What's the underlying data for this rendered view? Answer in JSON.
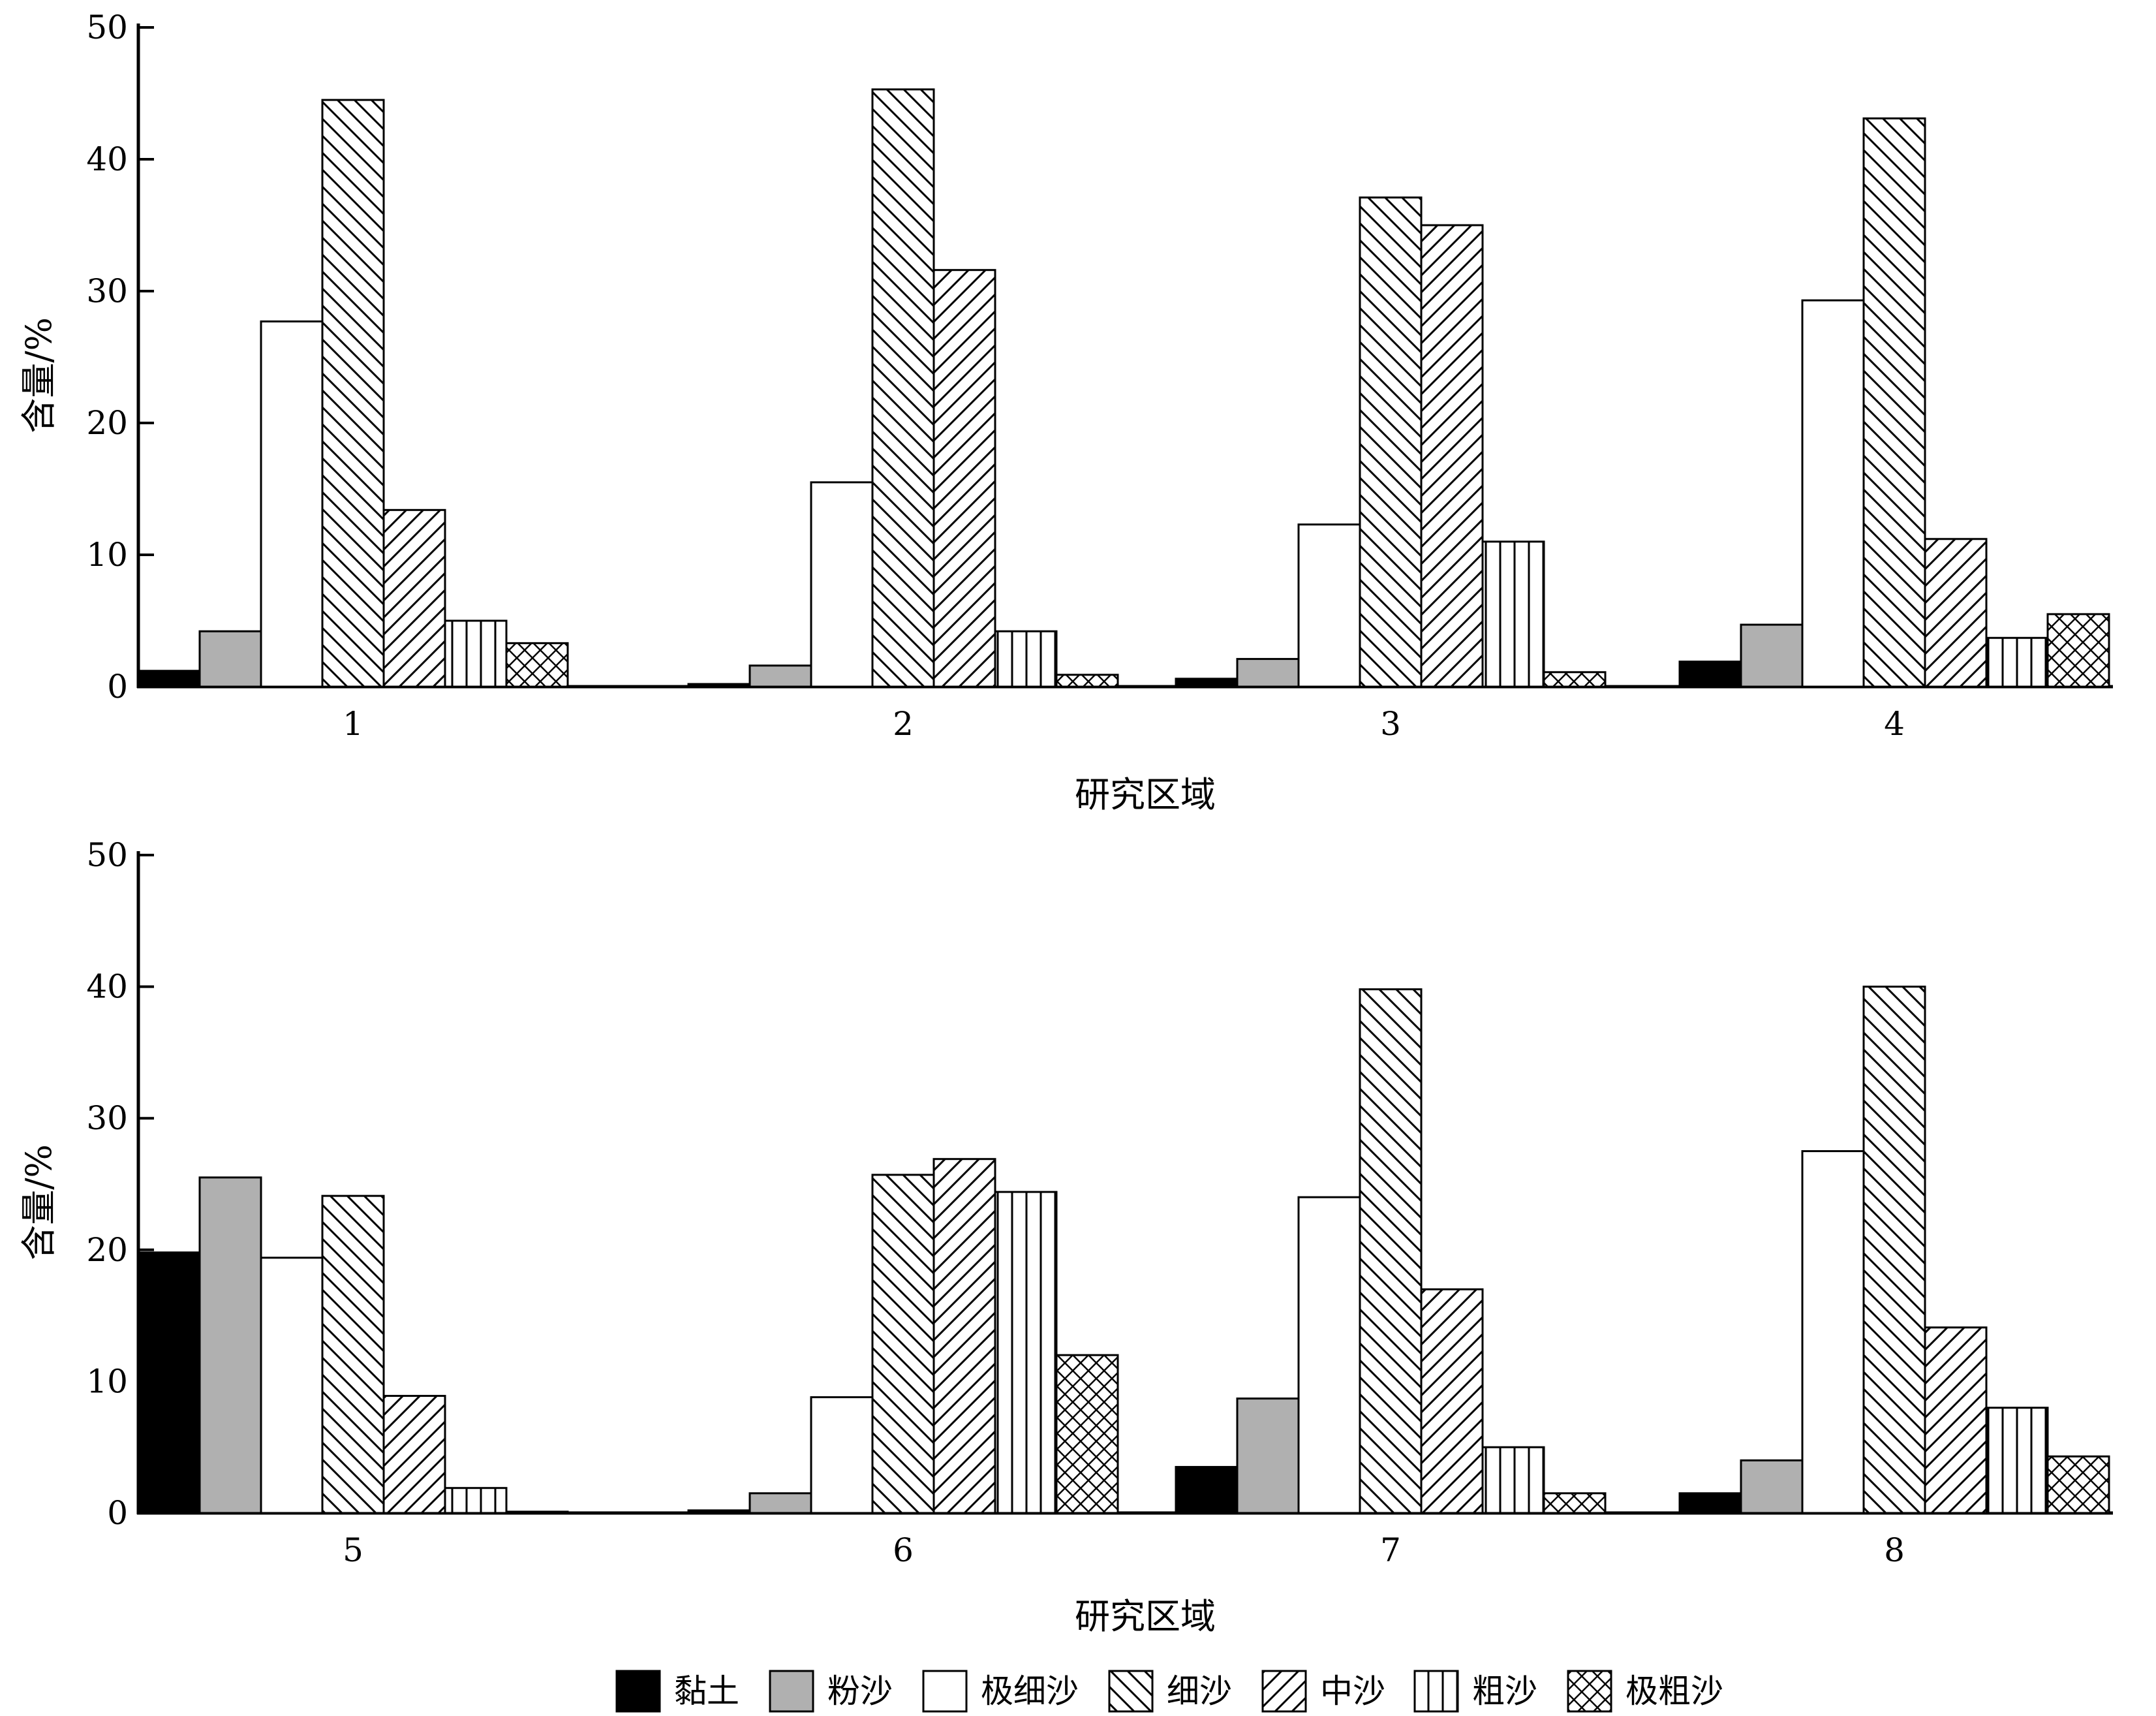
{
  "legend": [
    "黏土",
    "粉沙",
    "极细沙",
    "细沙",
    "中沙",
    "粗沙",
    "极粗沙"
  ],
  "series_styles": {
    "黏土": "solid-black",
    "粉沙": "solid-gray",
    "极细沙": "white",
    "细沙": "hatch-backslash",
    "中沙": "hatch-slash",
    "粗沙": "hatch-vertical",
    "极粗沙": "hatch-cross"
  },
  "colors": {
    "black": "#000000",
    "gray": "#b0b0b0",
    "white": "#ffffff"
  },
  "chart_data": [
    {
      "type": "bar",
      "categories": [
        "1",
        "2",
        "3",
        "4"
      ],
      "xlabel": "研究区域",
      "ylabel": "含量/%",
      "ylim": [
        0,
        50
      ],
      "yticks": [
        0,
        10,
        20,
        30,
        40,
        50
      ],
      "series": [
        {
          "name": "黏土",
          "values": [
            1.2,
            0.2,
            0.6,
            1.9
          ]
        },
        {
          "name": "粉沙",
          "values": [
            4.2,
            1.6,
            2.1,
            4.7
          ]
        },
        {
          "name": "极细沙",
          "values": [
            27.7,
            15.5,
            12.3,
            29.3
          ]
        },
        {
          "name": "细沙",
          "values": [
            44.5,
            45.3,
            37.1,
            43.1
          ]
        },
        {
          "name": "中沙",
          "values": [
            13.4,
            31.6,
            35.0,
            11.2
          ]
        },
        {
          "name": "粗沙",
          "values": [
            5.0,
            4.2,
            11.0,
            3.7
          ]
        },
        {
          "name": "极粗沙",
          "values": [
            3.3,
            0.9,
            1.1,
            5.5
          ]
        }
      ]
    },
    {
      "type": "bar",
      "categories": [
        "5",
        "6",
        "7",
        "8"
      ],
      "xlabel": "研究区域",
      "ylabel": "含量/%",
      "ylim": [
        0,
        50
      ],
      "yticks": [
        0,
        10,
        20,
        30,
        40,
        50
      ],
      "series": [
        {
          "name": "黏土",
          "values": [
            19.8,
            0.2,
            3.5,
            1.5
          ]
        },
        {
          "name": "粉沙",
          "values": [
            25.5,
            1.5,
            8.7,
            4.0
          ]
        },
        {
          "name": "极细沙",
          "values": [
            19.4,
            8.8,
            24.0,
            27.5
          ]
        },
        {
          "name": "细沙",
          "values": [
            24.1,
            25.7,
            39.8,
            40.0
          ]
        },
        {
          "name": "中沙",
          "values": [
            8.9,
            26.9,
            17.0,
            14.1
          ]
        },
        {
          "name": "粗沙",
          "values": [
            1.9,
            24.4,
            5.0,
            8.0
          ]
        },
        {
          "name": "极粗沙",
          "values": [
            0.1,
            12.0,
            1.5,
            4.3
          ]
        }
      ]
    }
  ]
}
